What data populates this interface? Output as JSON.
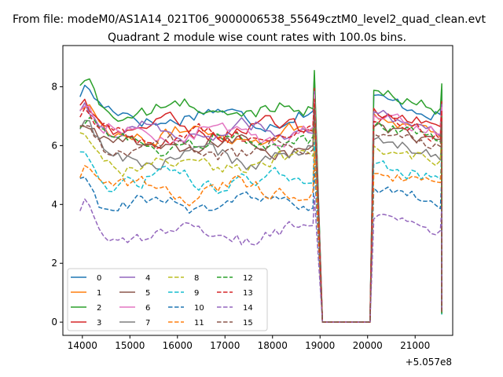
{
  "chart_data": {
    "type": "line",
    "suptitle": "From file: modeM0/AS1A14_021T06_9000006538_55649cztM0_level2_quad_clean.evt",
    "title": "Quadrant 2 module wise count rates with 100.0s bins.",
    "xlabel": "",
    "ylabel": "",
    "x_offset_label": "+5.057e8",
    "xlim": [
      13590,
      21790
    ],
    "ylim": [
      -0.45,
      9.4
    ],
    "xticks": [
      14000,
      15000,
      16000,
      17000,
      18000,
      19000,
      20000,
      21000
    ],
    "xtick_labels": [
      "14000",
      "15000",
      "16000",
      "17000",
      "18000",
      "19000",
      "20000",
      "21000"
    ],
    "yticks": [
      0,
      2,
      4,
      6,
      8
    ],
    "ytick_labels": [
      "0",
      "2",
      "4",
      "6",
      "8"
    ],
    "grid": false,
    "legend_location": "lower-left",
    "legend_columns": 4,
    "bin_width": 100,
    "segments": [
      {
        "start": 13950,
        "end": 18850
      },
      {
        "start": 20130,
        "end": 21530
      }
    ],
    "series": [
      {
        "name": "0",
        "color": "#1f77b4",
        "style": "solid",
        "base": 7.0
      },
      {
        "name": "1",
        "color": "#ff7f0e",
        "style": "solid",
        "base": 6.4
      },
      {
        "name": "2",
        "color": "#2ca02c",
        "style": "solid",
        "base": 7.2
      },
      {
        "name": "3",
        "color": "#d62728",
        "style": "solid",
        "base": 6.6
      },
      {
        "name": "4",
        "color": "#9467bd",
        "style": "solid",
        "base": 6.5
      },
      {
        "name": "5",
        "color": "#8c564b",
        "style": "solid",
        "base": 6.0
      },
      {
        "name": "6",
        "color": "#e377c2",
        "style": "solid",
        "base": 6.4
      },
      {
        "name": "7",
        "color": "#7f7f7f",
        "style": "solid",
        "base": 5.6
      },
      {
        "name": "8",
        "color": "#bcbd22",
        "style": "dashed",
        "base": 5.4
      },
      {
        "name": "9",
        "color": "#17becf",
        "style": "dashed",
        "base": 4.8
      },
      {
        "name": "10",
        "color": "#1f77b4",
        "style": "dashed",
        "base": 4.0
      },
      {
        "name": "11",
        "color": "#ff7f0e",
        "style": "dashed",
        "base": 4.5
      },
      {
        "name": "12",
        "color": "#2ca02c",
        "style": "dashed",
        "base": 6.1
      },
      {
        "name": "13",
        "color": "#d62728",
        "style": "dashed",
        "base": 6.3
      },
      {
        "name": "14",
        "color": "#9467bd",
        "style": "dashed",
        "base": 3.0
      },
      {
        "name": "15",
        "color": "#8c564b",
        "style": "dashed",
        "base": 5.9
      }
    ]
  }
}
